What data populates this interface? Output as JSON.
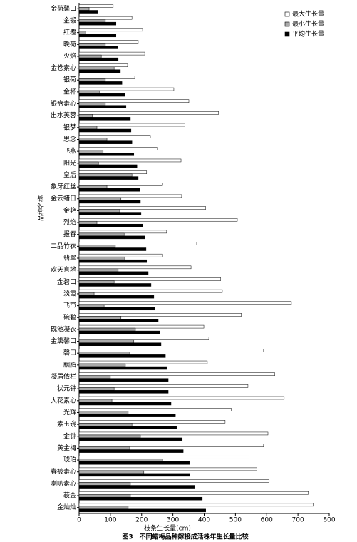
{
  "chart_data": {
    "type": "hbar",
    "caption": "图3　不同蜡梅品种嫁接成活株年生长量比较",
    "x_label": "枝条生长量(cm)",
    "y_label": "品种名称",
    "categories": [
      "金荷馨口",
      "金锻",
      "红覆",
      "晚荷",
      "火焰",
      "金卷素心",
      "银荷",
      "金杯",
      "银盘素心",
      "出水芙蓉",
      "银梦",
      "思念",
      "飞燕",
      "阳光",
      "皇后",
      "象牙红丝",
      "金云蜡日",
      "金艳",
      "烈焰",
      "报春",
      "二品竹衣",
      "翡翠",
      "欢天喜地",
      "金碧口",
      "淡霞",
      "飞帘",
      "碗碧",
      "砚池凝衣",
      "金黛馨口",
      "磬口",
      "胭脂",
      "凝眉依栏",
      "状元钟",
      "大花素心",
      "光辉",
      "素玉碗",
      "金钟",
      "黄金梅",
      "琥珀",
      "春被素心",
      "喇叭素心",
      "荻金",
      "金灿灿"
    ],
    "series": [
      {
        "name": "最大生长量",
        "color": "#ffffff",
        "values": [
          109,
          169,
          203,
          189,
          210,
          155,
          178,
          303,
          351,
          446,
          339,
          228,
          251,
          326,
          216,
          267,
          328,
          405,
          506,
          280,
          376,
          267,
          358,
          453,
          458,
          679,
          519,
          399,
          415,
          590,
          410,
          626,
          540,
          656,
          487,
          467,
          604,
          590,
          544,
          569,
          608,
          733,
          749
        ]
      },
      {
        "name": "最小生长量",
        "color": "#aaaaaa",
        "values": [
          32,
          84,
          21,
          84,
          71,
          112,
          84,
          66,
          84,
          43,
          57,
          89,
          77,
          62,
          169,
          89,
          134,
          130,
          57,
          144,
          116,
          146,
          125,
          112,
          48,
          80,
          134,
          180,
          175,
          162,
          148,
          100,
          112,
          105,
          157,
          169,
          196,
          162,
          267,
          207,
          164,
          164,
          157
        ]
      },
      {
        "name": "平均生长量",
        "color": "#000000",
        "values": [
          59,
          118,
          118,
          123,
          125,
          132,
          137,
          146,
          150,
          164,
          166,
          169,
          175,
          185,
          189,
          194,
          196,
          198,
          203,
          210,
          214,
          216,
          221,
          230,
          239,
          241,
          253,
          257,
          262,
          276,
          280,
          285,
          285,
          294,
          308,
          312,
          330,
          333,
          353,
          355,
          369,
          394,
          405
        ]
      }
    ],
    "xlim": [
      0,
      800
    ],
    "xticks": [
      0,
      100,
      200,
      300,
      400,
      500,
      600,
      700,
      800
    ],
    "legend": "upper-right"
  }
}
